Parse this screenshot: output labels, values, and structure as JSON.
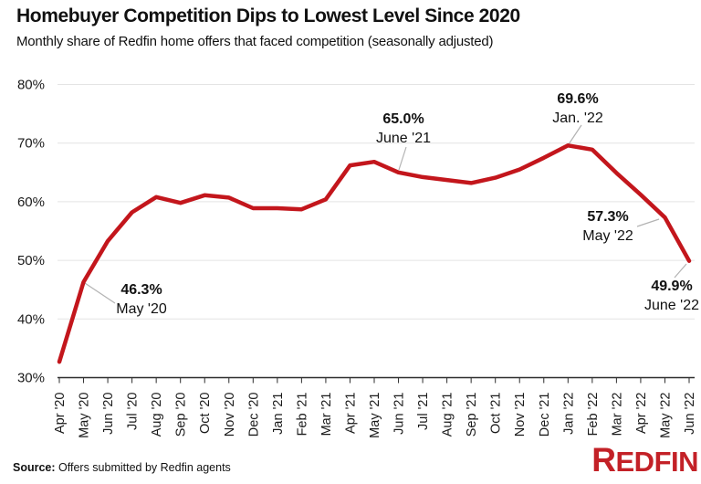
{
  "header": {
    "title": "Homebuyer Competition Dips to Lowest Level Since 2020",
    "subtitle": "Monthly share of Redfin home offers that faced competition (seasonally adjusted)"
  },
  "chart_data": {
    "type": "line",
    "title": "Homebuyer Competition Dips to Lowest Level Since 2020",
    "subtitle": "Monthly share of Redfin home offers that faced competition (seasonally adjusted)",
    "categories": [
      "Apr '20",
      "May '20",
      "Jun '20",
      "Jul '20",
      "Aug '20",
      "Sep '20",
      "Oct '20",
      "Nov '20",
      "Dec '20",
      "Jan '21",
      "Feb '21",
      "Mar '21",
      "Apr '21",
      "May '21",
      "Jun '21",
      "Jul '21",
      "Aug '21",
      "Sep '21",
      "Oct '21",
      "Nov '21",
      "Dec '21",
      "Jan '22",
      "Feb '22",
      "Mar '22",
      "Apr '22",
      "May '22",
      "Jun '22"
    ],
    "series": [
      {
        "name": "Share of offers facing competition",
        "values": [
          32.7,
          46.3,
          53.3,
          58.2,
          60.8,
          59.8,
          61.1,
          60.7,
          58.9,
          58.9,
          58.7,
          60.4,
          66.2,
          66.8,
          65.0,
          64.2,
          63.7,
          63.2,
          64.1,
          65.5,
          67.5,
          69.6,
          68.9,
          64.9,
          61.2,
          57.3,
          49.9
        ]
      }
    ],
    "ylim": [
      30,
      80
    ],
    "yticks": [
      30,
      40,
      50,
      60,
      70,
      80
    ],
    "ytick_labels": [
      "30%",
      "40%",
      "50%",
      "60%",
      "70%",
      "80%"
    ],
    "grid": true,
    "legend": "none",
    "annotations": [
      {
        "value": "46.3%",
        "date": "May '20",
        "month_index": 1
      },
      {
        "value": "65.0%",
        "date": "June '21",
        "month_index": 14
      },
      {
        "value": "69.6%",
        "date": "Jan. '22",
        "month_index": 21
      },
      {
        "value": "57.3%",
        "date": "May '22",
        "month_index": 25
      },
      {
        "value": "49.9%",
        "date": "June '22",
        "month_index": 26
      }
    ],
    "colors": {
      "line": "#C3161C",
      "grid": "#E4E4E4",
      "axis": "#2E2E2E",
      "connector": "#B3B3B3",
      "text": "#1A1A1A"
    }
  },
  "footer": {
    "source_label": "Source:",
    "source_text": "Offers submitted by Redfin agents",
    "logo_text": "REDFIN",
    "logo_color": "#C32127"
  }
}
